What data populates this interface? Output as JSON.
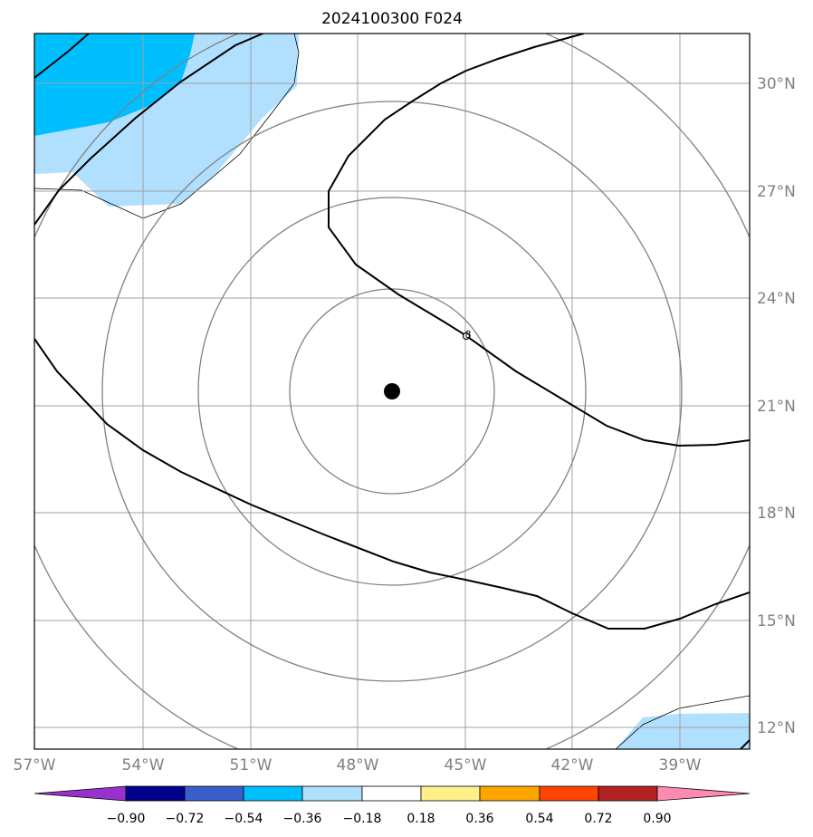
{
  "title": "2024100300 F024",
  "colors": {
    "positive_lightblue": "#b0e0fe",
    "positive_blue": "#00bfff",
    "grid": "#a0a0a0",
    "circles": "#808080",
    "contour": "#000000"
  },
  "map": {
    "lon_range": [
      -57,
      -37
    ],
    "lat_range": [
      11.5,
      31.5
    ],
    "lon_ticks": [
      "57°W",
      "54°W",
      "51°W",
      "48°W",
      "45°W",
      "42°W",
      "39°W"
    ],
    "lat_ticks": [
      "30°N",
      "27°N",
      "24°N",
      "21°N",
      "18°N",
      "15°N",
      "12°N"
    ],
    "storm_center": {
      "lon": -47,
      "lat": 21.4
    },
    "marker_label": "8"
  },
  "colorbar": {
    "labels": [
      "−0.90",
      "−0.72",
      "−0.54",
      "−0.36",
      "−0.18",
      "0.18",
      "0.36",
      "0.54",
      "0.72",
      "0.90"
    ],
    "colors": [
      "#9932cc",
      "#00008b",
      "#3a5fcd",
      "#00bfff",
      "#b0e0fe",
      "#ffffff",
      "#fff08c",
      "#ffa500",
      "#ff4500",
      "#b22222",
      "#ff8ab0"
    ]
  }
}
